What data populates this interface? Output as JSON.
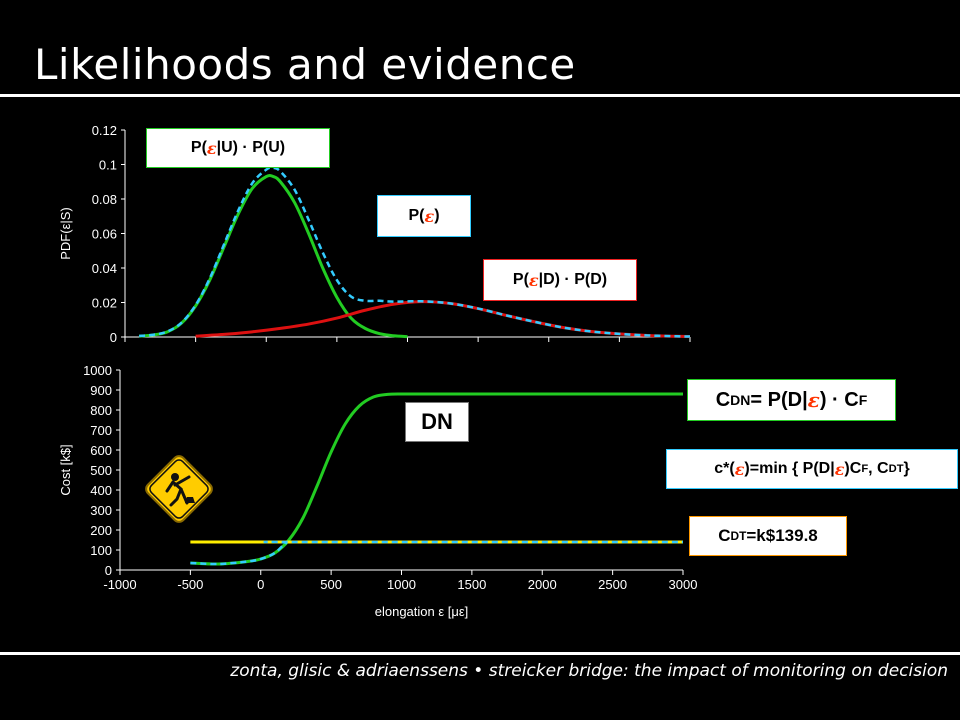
{
  "slide": {
    "title": "Likelihoods and evidence",
    "footer": "zonta, glisic & adriaenssens • streicker bridge: the impact of monitoring on decision"
  },
  "labels": {
    "pu_pre": "P(",
    "pu_post": "|U) · P(U)",
    "pe_pre": "P(",
    "pe_post": ")",
    "pd_pre": "P(",
    "pd_post": "|D) · P(D)",
    "eps": "ε",
    "cdn_c": "C",
    "cdn_sub": "DN",
    "cdn_mid": " = P(D|",
    "cdn_end": ") · C",
    "cdn_sub2": "F",
    "dn": "DN",
    "cstar_pre": "c*(",
    "cstar_mid": ")=min { P(D|",
    "cstar_mid2": ")C",
    "cstar_sub1": "F",
    "cstar_mid3": " , C",
    "cstar_sub2": "DT",
    "cstar_end": " }",
    "cdt_c": "C",
    "cdt_sub": "DT",
    "cdt_rest": "=k$139.8"
  },
  "colors": {
    "background": "#000000",
    "green": "#22cc22",
    "red": "#dd1111",
    "cyan": "#33ccff",
    "yellow": "#ffee00",
    "sign_yellow": "#ffcc00"
  },
  "icons": {
    "worker_sign": "road-work-sign-icon"
  },
  "chart_data": [
    {
      "type": "line",
      "ylabel": "PDF(ε|S)",
      "ylim": [
        0,
        0.12
      ],
      "yticks": [
        "0",
        "0.02",
        "0.04",
        "0.06",
        "0.08",
        "0.1",
        "0.12"
      ],
      "xlim": [
        -1000,
        3000
      ],
      "grid": false,
      "series": [
        {
          "name": "P(ε|U) · P(U)",
          "color": "#22cc22",
          "x": [
            -900,
            -800,
            -700,
            -600,
            -500,
            -400,
            -300,
            -200,
            -100,
            0,
            50,
            100,
            200,
            300,
            400,
            500,
            600,
            700,
            800,
            900,
            1000
          ],
          "y": [
            0.0005,
            0.0012,
            0.003,
            0.008,
            0.018,
            0.033,
            0.052,
            0.071,
            0.086,
            0.093,
            0.093,
            0.09,
            0.078,
            0.06,
            0.04,
            0.023,
            0.011,
            0.005,
            0.002,
            0.0007,
            0.0002
          ]
        },
        {
          "name": "P(ε|D) · P(D)",
          "color": "#dd1111",
          "x": [
            -500,
            -300,
            -100,
            100,
            300,
            500,
            700,
            900,
            1100,
            1300,
            1500,
            1700,
            1900,
            2100,
            2300,
            2500,
            2700,
            2900,
            3000
          ],
          "y": [
            0.0005,
            0.0015,
            0.003,
            0.005,
            0.0075,
            0.011,
            0.0155,
            0.019,
            0.0205,
            0.0195,
            0.0165,
            0.0125,
            0.0088,
            0.0055,
            0.0032,
            0.0018,
            0.0009,
            0.0004,
            0.0003
          ]
        },
        {
          "name": "P(ε)",
          "color": "#33ccff",
          "dashed": true,
          "x": [
            -900,
            -800,
            -700,
            -600,
            -500,
            -400,
            -300,
            -200,
            -100,
            0,
            50,
            100,
            200,
            300,
            400,
            500,
            600,
            700,
            800,
            900,
            1100,
            1300,
            1500,
            1700,
            1900,
            2100,
            2300,
            2500,
            2700,
            2900,
            3000
          ],
          "y": [
            0.0006,
            0.0013,
            0.0032,
            0.0083,
            0.0185,
            0.034,
            0.0535,
            0.073,
            0.089,
            0.097,
            0.098,
            0.096,
            0.0855,
            0.068,
            0.049,
            0.033,
            0.0235,
            0.021,
            0.021,
            0.0205,
            0.0207,
            0.0195,
            0.0165,
            0.0125,
            0.0088,
            0.0055,
            0.0032,
            0.0018,
            0.0009,
            0.0004,
            0.0003
          ]
        }
      ]
    },
    {
      "type": "line",
      "xlabel": "elongation ε [με]",
      "ylabel": "Cost [k$]",
      "ylim": [
        0,
        1000
      ],
      "yticks": [
        "0",
        "100",
        "200",
        "300",
        "400",
        "500",
        "600",
        "700",
        "800",
        "900",
        "1000"
      ],
      "xlim": [
        -1000,
        3000
      ],
      "xticks": [
        "-1000",
        "-500",
        "0",
        "500",
        "1000",
        "1500",
        "2000",
        "2500",
        "3000"
      ],
      "grid": false,
      "series": [
        {
          "name": "C DN = P(D|ε) · C F",
          "color": "#22cc22",
          "x": [
            -500,
            -300,
            -100,
            0,
            100,
            200,
            300,
            400,
            500,
            600,
            700,
            800,
            900,
            1000,
            1100,
            1200,
            3000
          ],
          "y": [
            35,
            30,
            42,
            55,
            85,
            150,
            260,
            420,
            590,
            730,
            820,
            865,
            878,
            880,
            880,
            880,
            880
          ]
        },
        {
          "name": "C DT=k$139.8",
          "color": "#ffee00",
          "x": [
            -500,
            3000
          ],
          "y": [
            139.8,
            139.8
          ]
        },
        {
          "name": "c*(ε)=min { P(D|ε)C F , C DT }",
          "color": "#33ccff",
          "dashed": true,
          "x": [
            -500,
            -300,
            -100,
            0,
            100,
            180,
            250,
            3000
          ],
          "y": [
            35,
            30,
            42,
            55,
            85,
            135,
            139.8,
            139.8
          ]
        }
      ]
    }
  ]
}
